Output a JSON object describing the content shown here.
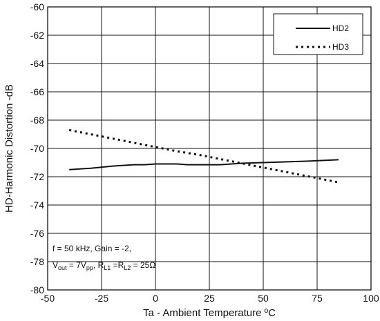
{
  "chart_data": {
    "type": "line",
    "title": "",
    "xlabel": "Ta - Ambient Temperature ºC",
    "ylabel": "HD-Harmonic Distortion -dB",
    "xlim": [
      -50,
      100
    ],
    "ylim": [
      -80,
      -60
    ],
    "x_ticks": [
      "-50",
      "-25",
      "0",
      "25",
      "50",
      "75",
      "100"
    ],
    "y_ticks": [
      "-60",
      "-62",
      "-64",
      "-66",
      "-68",
      "-70",
      "-72",
      "-74",
      "-76",
      "-78",
      "-80"
    ],
    "grid": true,
    "legend_position": "top-right",
    "series": [
      {
        "name": "HD2",
        "style": "solid",
        "color": "#111111",
        "x": [
          -40,
          -30,
          -20,
          -10,
          -5,
          0,
          10,
          15,
          20,
          30,
          40,
          50,
          60,
          70,
          85
        ],
        "y": [
          -71.5,
          -71.4,
          -71.25,
          -71.15,
          -71.15,
          -71.1,
          -71.1,
          -71.15,
          -71.15,
          -71.15,
          -71.05,
          -71.0,
          -70.95,
          -70.9,
          -70.8
        ]
      },
      {
        "name": "HD3",
        "style": "dotted",
        "color": "#111111",
        "x": [
          -40,
          -30,
          -20,
          -10,
          0,
          10,
          20,
          30,
          40,
          50,
          60,
          70,
          80,
          85
        ],
        "y": [
          -68.7,
          -69.0,
          -69.3,
          -69.6,
          -69.9,
          -70.2,
          -70.45,
          -70.75,
          -71.05,
          -71.35,
          -71.65,
          -71.95,
          -72.25,
          -72.4
        ]
      }
    ],
    "annotation": {
      "line1": "f = 50 kHz, Gain = -2,",
      "v_main": "V",
      "v_sub": "out",
      "v_value": " = 7V",
      "v_unit_sub": "pp",
      "r_sep": ", R",
      "r1_sub": "L1",
      "r_eq": " =R",
      "r2_sub": "L2",
      "r_value": " = 25Ω"
    }
  }
}
